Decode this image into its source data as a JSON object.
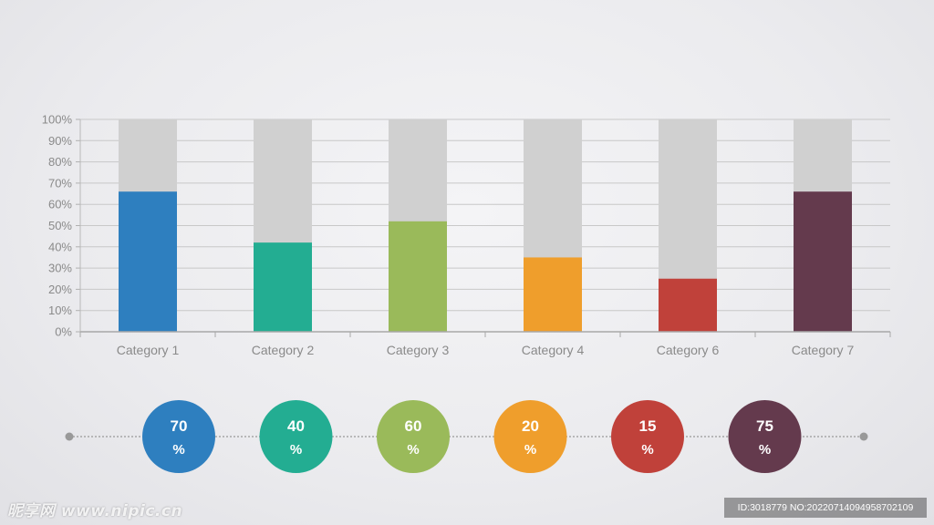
{
  "chart_data": {
    "type": "bar",
    "categories": [
      "Category 1",
      "Category 2",
      "Category 3",
      "Category 4",
      "Category 6",
      "Category 7"
    ],
    "values": [
      66,
      42,
      52,
      35,
      25,
      66
    ],
    "background_value": 100,
    "ylim": [
      0,
      100
    ],
    "yticks": [
      "0%",
      "10%",
      "20%",
      "30%",
      "40%",
      "50%",
      "60%",
      "70%",
      "80%",
      "90%",
      "100%"
    ],
    "grid": true,
    "bar_colors": [
      "#2e7fbf",
      "#23ad92",
      "#9aba5a",
      "#ef9e2c",
      "#c0413a",
      "#643a4d"
    ],
    "background_bar_color": "#d0d0d0",
    "xlabel": "",
    "ylabel": ""
  },
  "timeline": {
    "circles": [
      {
        "value": "70",
        "unit": "%",
        "color": "#2e7fbf"
      },
      {
        "value": "40",
        "unit": "%",
        "color": "#23ad92"
      },
      {
        "value": "60",
        "unit": "%",
        "color": "#9aba5a"
      },
      {
        "value": "20",
        "unit": "%",
        "color": "#ef9e2c"
      },
      {
        "value": "15",
        "unit": "%",
        "color": "#c0413a"
      },
      {
        "value": "75",
        "unit": "%",
        "color": "#643a4d"
      }
    ]
  },
  "watermark": {
    "left_text": "昵享网 www.nipic.cn",
    "right_text": "ID:3018779 NO:20220714094958702109"
  }
}
